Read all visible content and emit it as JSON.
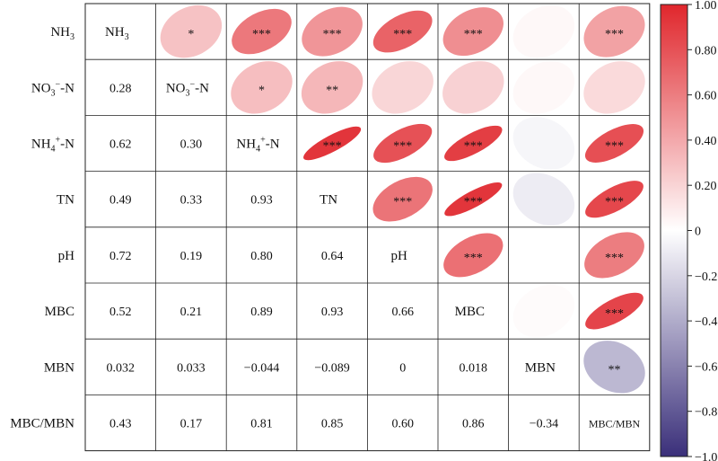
{
  "chart_data": {
    "type": "heatmap",
    "title": "",
    "variables": [
      "NH3",
      "NO3−-N",
      "NH4+-N",
      "TN",
      "pH",
      "MBC",
      "MBN",
      "MBC/MBN"
    ],
    "variable_labels": [
      {
        "base": "NH",
        "sub": "3",
        "sup": "",
        "tail": ""
      },
      {
        "base": "NO",
        "sub": "3",
        "sup": "−",
        "tail": "-N"
      },
      {
        "base": "NH",
        "sub": "4",
        "sup": "+",
        "tail": "-N"
      },
      {
        "base": "TN",
        "sub": "",
        "sup": "",
        "tail": ""
      },
      {
        "base": "pH",
        "sub": "",
        "sup": "",
        "tail": ""
      },
      {
        "base": "MBC",
        "sub": "",
        "sup": "",
        "tail": ""
      },
      {
        "base": "MBN",
        "sub": "",
        "sup": "",
        "tail": ""
      },
      {
        "base": "MBC/MBN",
        "sub": "",
        "sup": "",
        "tail": ""
      }
    ],
    "matrix": [
      [
        1,
        0.28,
        0.62,
        0.49,
        0.72,
        0.52,
        0.032,
        0.43
      ],
      [
        0.28,
        1,
        0.3,
        0.33,
        0.19,
        0.21,
        0.033,
        0.17
      ],
      [
        0.62,
        0.3,
        1,
        0.93,
        0.8,
        0.89,
        -0.044,
        0.81
      ],
      [
        0.49,
        0.33,
        0.93,
        1,
        0.64,
        0.93,
        -0.089,
        0.85
      ],
      [
        0.72,
        0.19,
        0.8,
        0.64,
        1,
        0.66,
        0,
        0.6
      ],
      [
        0.52,
        0.21,
        0.89,
        0.93,
        0.66,
        1,
        0.018,
        0.86
      ],
      [
        0.032,
        0.033,
        -0.044,
        -0.089,
        0,
        0.018,
        1,
        -0.34
      ],
      [
        0.43,
        0.17,
        0.81,
        0.85,
        0.6,
        0.86,
        -0.34,
        1
      ]
    ],
    "coefficient_labels": [
      [
        "",
        "",
        "",
        "",
        "",
        "",
        "",
        ""
      ],
      [
        "0.28",
        "",
        "",
        "",
        "",
        "",
        "",
        ""
      ],
      [
        "0.62",
        "0.30",
        "",
        "",
        "",
        "",
        "",
        ""
      ],
      [
        "0.49",
        "0.33",
        "0.93",
        "",
        "",
        "",
        "",
        ""
      ],
      [
        "0.72",
        "0.19",
        "0.80",
        "0.64",
        "",
        "",
        "",
        ""
      ],
      [
        "0.52",
        "0.21",
        "0.89",
        "0.93",
        "0.66",
        "",
        "",
        ""
      ],
      [
        "0.032",
        "0.033",
        "−0.044",
        "−0.089",
        "0",
        "0.018",
        "",
        ""
      ],
      [
        "0.43",
        "0.17",
        "0.81",
        "0.85",
        "0.60",
        "0.86",
        "−0.34",
        ""
      ]
    ],
    "significance": [
      [
        "",
        "*",
        "***",
        "***",
        "***",
        "***",
        "",
        "***"
      ],
      [
        "",
        "",
        "*",
        "**",
        "",
        "",
        "",
        ""
      ],
      [
        "",
        "",
        "",
        "***",
        "***",
        "***",
        "",
        "***"
      ],
      [
        "",
        "",
        "",
        "",
        "***",
        "***",
        "",
        "***"
      ],
      [
        "",
        "",
        "",
        "",
        "",
        "***",
        "",
        "***"
      ],
      [
        "",
        "",
        "",
        "",
        "",
        "",
        "",
        "***"
      ],
      [
        "",
        "",
        "",
        "",
        "",
        "",
        "",
        "**"
      ],
      [
        "",
        "",
        "",
        "",
        "",
        "",
        "",
        ""
      ]
    ],
    "lower_triangle": "numbers",
    "upper_triangle": "ellipses",
    "colorbar": {
      "range": [
        -1,
        1
      ],
      "ticks": [
        "1.00",
        "0.80",
        "0.60",
        "0.40",
        "0.20",
        "0",
        "−0.20",
        "−0.40",
        "−0.60",
        "−0.80",
        "−1.00"
      ],
      "tick_values": [
        1,
        0.8,
        0.6,
        0.4,
        0.2,
        0,
        -0.2,
        -0.4,
        -0.6,
        -0.8,
        -1
      ],
      "colors": {
        "negative": "#3a2f7a",
        "zero": "#ffffff",
        "positive": "#e0262c"
      },
      "placement": "right"
    }
  }
}
